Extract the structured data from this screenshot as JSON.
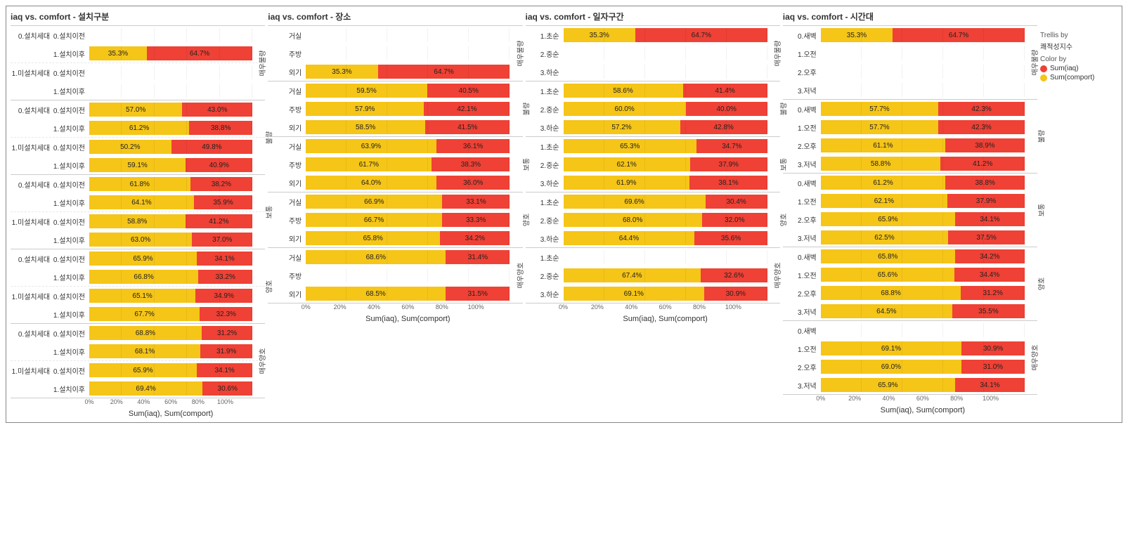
{
  "colors": {
    "comfort": "#f5c518",
    "iaq": "#ef4135",
    "text": "#333333",
    "grid": "#e5e5e5",
    "bg": "#ffffff"
  },
  "legend": {
    "trellis_title": "Trellis by",
    "trellis_value": "쾌적성지수",
    "color_title": "Color by",
    "items": [
      {
        "label": "Sum(iaq)",
        "color_key": "iaq"
      },
      {
        "label": "Sum(comport)",
        "color_key": "comfort"
      }
    ]
  },
  "x_axis": {
    "ticks": [
      "0%",
      "20%",
      "40%",
      "60%",
      "80%",
      "100%"
    ],
    "label": "Sum(iaq), Sum(comport)",
    "range": [
      0,
      100
    ]
  },
  "panels": [
    {
      "title": "iaq vs. comfort - 설치구분",
      "y_axis_label": "설치구분",
      "has_group_col": true,
      "panes": [
        {
          "v_label": "매우불량",
          "groups": [
            {
              "group": "0.설치세대",
              "rows": [
                {
                  "label": "0.설치이전",
                  "comfort": null,
                  "iaq": null
                },
                {
                  "label": "1.설치이후",
                  "comfort": 35.3,
                  "iaq": 64.7
                }
              ]
            },
            {
              "group": "1.미설치세대",
              "rows": [
                {
                  "label": "0.설치이전",
                  "comfort": null,
                  "iaq": null
                },
                {
                  "label": "1.설치이후",
                  "comfort": null,
                  "iaq": null
                }
              ]
            }
          ]
        },
        {
          "v_label": "불량",
          "groups": [
            {
              "group": "0.설치세대",
              "rows": [
                {
                  "label": "0.설치이전",
                  "comfort": 57.0,
                  "iaq": 43.0
                },
                {
                  "label": "1.설치이후",
                  "comfort": 61.2,
                  "iaq": 38.8
                }
              ]
            },
            {
              "group": "1.미설치세대",
              "rows": [
                {
                  "label": "0.설치이전",
                  "comfort": 50.2,
                  "iaq": 49.8
                },
                {
                  "label": "1.설치이후",
                  "comfort": 59.1,
                  "iaq": 40.9
                }
              ]
            }
          ]
        },
        {
          "v_label": "보통",
          "groups": [
            {
              "group": "0.설치세대",
              "rows": [
                {
                  "label": "0.설치이전",
                  "comfort": 61.8,
                  "iaq": 38.2
                },
                {
                  "label": "1.설치이후",
                  "comfort": 64.1,
                  "iaq": 35.9
                }
              ]
            },
            {
              "group": "1.미설치세대",
              "rows": [
                {
                  "label": "0.설치이전",
                  "comfort": 58.8,
                  "iaq": 41.2
                },
                {
                  "label": "1.설치이후",
                  "comfort": 63.0,
                  "iaq": 37.0
                }
              ]
            }
          ]
        },
        {
          "v_label": "양호",
          "groups": [
            {
              "group": "0.설치세대",
              "rows": [
                {
                  "label": "0.설치이전",
                  "comfort": 65.9,
                  "iaq": 34.1
                },
                {
                  "label": "1.설치이후",
                  "comfort": 66.8,
                  "iaq": 33.2
                }
              ]
            },
            {
              "group": "1.미설치세대",
              "rows": [
                {
                  "label": "0.설치이전",
                  "comfort": 65.1,
                  "iaq": 34.9
                },
                {
                  "label": "1.설치이후",
                  "comfort": 67.7,
                  "iaq": 32.3
                }
              ]
            }
          ]
        },
        {
          "v_label": "매우양호",
          "groups": [
            {
              "group": "0.설치세대",
              "rows": [
                {
                  "label": "0.설치이전",
                  "comfort": 68.8,
                  "iaq": 31.2
                },
                {
                  "label": "1.설치이후",
                  "comfort": 68.1,
                  "iaq": 31.9
                }
              ]
            },
            {
              "group": "1.미설치세대",
              "rows": [
                {
                  "label": "0.설치이전",
                  "comfort": 65.9,
                  "iaq": 34.1
                },
                {
                  "label": "1.설치이후",
                  "comfort": 69.4,
                  "iaq": 30.6
                }
              ]
            }
          ]
        }
      ]
    },
    {
      "title": "iaq vs. comfort - 장소",
      "y_axis_label": "장소",
      "has_group_col": false,
      "panes": [
        {
          "v_label": "매우불량",
          "rows": [
            {
              "label": "거실",
              "comfort": null,
              "iaq": null
            },
            {
              "label": "주방",
              "comfort": null,
              "iaq": null
            },
            {
              "label": "외기",
              "comfort": 35.3,
              "iaq": 64.7
            }
          ]
        },
        {
          "v_label": "불량",
          "rows": [
            {
              "label": "거실",
              "comfort": 59.5,
              "iaq": 40.5
            },
            {
              "label": "주방",
              "comfort": 57.9,
              "iaq": 42.1
            },
            {
              "label": "외기",
              "comfort": 58.5,
              "iaq": 41.5
            }
          ]
        },
        {
          "v_label": "보통",
          "rows": [
            {
              "label": "거실",
              "comfort": 63.9,
              "iaq": 36.1
            },
            {
              "label": "주방",
              "comfort": 61.7,
              "iaq": 38.3
            },
            {
              "label": "외기",
              "comfort": 64.0,
              "iaq": 36.0
            }
          ]
        },
        {
          "v_label": "양호",
          "rows": [
            {
              "label": "거실",
              "comfort": 66.9,
              "iaq": 33.1
            },
            {
              "label": "주방",
              "comfort": 66.7,
              "iaq": 33.3
            },
            {
              "label": "외기",
              "comfort": 65.8,
              "iaq": 34.2
            }
          ]
        },
        {
          "v_label": "매우양호",
          "rows": [
            {
              "label": "거실",
              "comfort": 68.6,
              "iaq": 31.4
            },
            {
              "label": "주방",
              "comfort": null,
              "iaq": null
            },
            {
              "label": "외기",
              "comfort": 68.5,
              "iaq": 31.5
            }
          ]
        }
      ]
    },
    {
      "title": "iaq vs. comfort - 일자구간",
      "y_axis_label": "일자구간",
      "has_group_col": false,
      "panes": [
        {
          "v_label": "매우불량",
          "rows": [
            {
              "label": "1.초순",
              "comfort": 35.3,
              "iaq": 64.7
            },
            {
              "label": "2.중순",
              "comfort": null,
              "iaq": null
            },
            {
              "label": "3.하순",
              "comfort": null,
              "iaq": null
            }
          ]
        },
        {
          "v_label": "불량",
          "rows": [
            {
              "label": "1.초순",
              "comfort": 58.6,
              "iaq": 41.4
            },
            {
              "label": "2.중순",
              "comfort": 60.0,
              "iaq": 40.0
            },
            {
              "label": "3.하순",
              "comfort": 57.2,
              "iaq": 42.8
            }
          ]
        },
        {
          "v_label": "보통",
          "rows": [
            {
              "label": "1.초순",
              "comfort": 65.3,
              "iaq": 34.7
            },
            {
              "label": "2.중순",
              "comfort": 62.1,
              "iaq": 37.9
            },
            {
              "label": "3.하순",
              "comfort": 61.9,
              "iaq": 38.1
            }
          ]
        },
        {
          "v_label": "양호",
          "rows": [
            {
              "label": "1.초순",
              "comfort": 69.6,
              "iaq": 30.4
            },
            {
              "label": "2.중순",
              "comfort": 68.0,
              "iaq": 32.0
            },
            {
              "label": "3.하순",
              "comfort": 64.4,
              "iaq": 35.6
            }
          ]
        },
        {
          "v_label": "매우양호",
          "rows": [
            {
              "label": "1.초순",
              "comfort": null,
              "iaq": null
            },
            {
              "label": "2.중순",
              "comfort": 67.4,
              "iaq": 32.6
            },
            {
              "label": "3.하순",
              "comfort": 69.1,
              "iaq": 30.9
            }
          ]
        }
      ]
    },
    {
      "title": "iaq vs. comfort - 시간대",
      "y_axis_label": "시간대",
      "has_group_col": false,
      "panes": [
        {
          "v_label": "매우불량",
          "rows": [
            {
              "label": "0.새벽",
              "comfort": 35.3,
              "iaq": 64.7
            },
            {
              "label": "1.오전",
              "comfort": null,
              "iaq": null
            },
            {
              "label": "2.오후",
              "comfort": null,
              "iaq": null
            },
            {
              "label": "3.저녁",
              "comfort": null,
              "iaq": null
            }
          ]
        },
        {
          "v_label": "불량",
          "rows": [
            {
              "label": "0.새벽",
              "comfort": 57.7,
              "iaq": 42.3
            },
            {
              "label": "1.오전",
              "comfort": 57.7,
              "iaq": 42.3
            },
            {
              "label": "2.오후",
              "comfort": 61.1,
              "iaq": 38.9
            },
            {
              "label": "3.저녁",
              "comfort": 58.8,
              "iaq": 41.2
            }
          ]
        },
        {
          "v_label": "보통",
          "rows": [
            {
              "label": "0.새벽",
              "comfort": 61.2,
              "iaq": 38.8
            },
            {
              "label": "1.오전",
              "comfort": 62.1,
              "iaq": 37.9
            },
            {
              "label": "2.오후",
              "comfort": 65.9,
              "iaq": 34.1
            },
            {
              "label": "3.저녁",
              "comfort": 62.5,
              "iaq": 37.5
            }
          ]
        },
        {
          "v_label": "양호",
          "rows": [
            {
              "label": "0.새벽",
              "comfort": 65.8,
              "iaq": 34.2
            },
            {
              "label": "1.오전",
              "comfort": 65.6,
              "iaq": 34.4
            },
            {
              "label": "2.오후",
              "comfort": 68.8,
              "iaq": 31.2
            },
            {
              "label": "3.저녁",
              "comfort": 64.5,
              "iaq": 35.5
            }
          ]
        },
        {
          "v_label": "매우양호",
          "rows": [
            {
              "label": "0.새벽",
              "comfort": null,
              "iaq": null
            },
            {
              "label": "1.오전",
              "comfort": 69.1,
              "iaq": 30.9
            },
            {
              "label": "2.오후",
              "comfort": 69.0,
              "iaq": 31.0
            },
            {
              "label": "3.저녁",
              "comfort": 65.9,
              "iaq": 34.1
            }
          ]
        }
      ]
    }
  ]
}
